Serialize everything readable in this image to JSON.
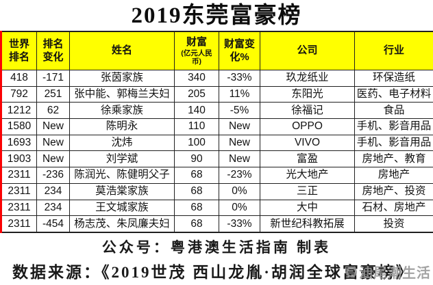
{
  "title": "2019东莞富豪榜",
  "table": {
    "columns": [
      {
        "key": "world-rank",
        "label": "世界\n排名"
      },
      {
        "key": "rank-change",
        "label": "排名\n变化"
      },
      {
        "key": "name",
        "label": "姓名"
      },
      {
        "key": "wealth",
        "label": "财富",
        "sublabel": "(亿元人民\n币)"
      },
      {
        "key": "wealth-change",
        "label": "财富变\n化%"
      },
      {
        "key": "company",
        "label": "公司"
      },
      {
        "key": "industry",
        "label": "行业"
      }
    ],
    "rows": [
      [
        "418",
        "-171",
        "张茵家族",
        "340",
        "-33%",
        "玖龙纸业",
        "环保造纸"
      ],
      [
        "792",
        "251",
        "张中能、郭梅兰夫妇",
        "205",
        "11%",
        "东阳光",
        "医药、电子材料"
      ],
      [
        "1212",
        "62",
        "徐乘家族",
        "140",
        "-5%",
        "徐福记",
        "食品"
      ],
      [
        "1580",
        "New",
        "陈明永",
        "110",
        "New",
        "OPPO",
        "手机、影音用品"
      ],
      [
        "1693",
        "New",
        "沈炜",
        "100",
        "New",
        "VIVO",
        "手机、影音用品"
      ],
      [
        "1903",
        "New",
        "刘学斌",
        "90",
        "New",
        "富盈",
        "房地产、教育"
      ],
      [
        "2311",
        "-236",
        "陈润光、陈健明父子",
        "68",
        "-23%",
        "光大地产",
        "房地产"
      ],
      [
        "2311",
        "234",
        "莫浩棠家族",
        "68",
        "0%",
        "三正",
        "房地产、投资"
      ],
      [
        "2311",
        "234",
        "王文城家族",
        "68",
        "0%",
        "大中",
        "石材、房地产"
      ],
      [
        "2311",
        "-454",
        "杨志茂、朱凤廉夫妇",
        "68",
        "-33%",
        "新世纪科教拓展",
        "投资"
      ]
    ]
  },
  "footer": {
    "line1": "公众号：粤港澳生活指南 制表",
    "line2": "数据来源：《2019世茂 西山龙胤·胡润全球富豪榜》"
  },
  "watermark": {
    "text": "汕尾潮生活",
    "icon": "ring-logo-icon"
  },
  "colors": {
    "header_bg": "#ffff00",
    "grid_border": "#1f1f1f",
    "side_border": "#fb0204",
    "watermark": "#949494",
    "text": "#111111"
  }
}
